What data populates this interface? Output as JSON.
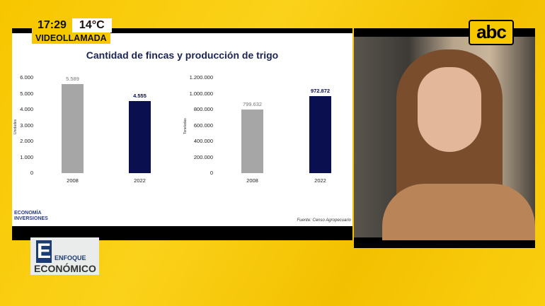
{
  "overlay": {
    "time": "17:29",
    "temperature": "14°C",
    "tag": "VIDEOLLAMADA",
    "channel_logo": "abc",
    "program_logo": {
      "letter": "E",
      "line1": "ENFOQUE",
      "line2": "ECONÓMICO"
    }
  },
  "slide": {
    "title": "Cantidad de fincas y producción de trigo",
    "brand_line1": "ECONOMÍA",
    "brand_line2": "INVERSIONES",
    "source": "Fuente: Censo Agropecuario"
  },
  "chart_data": [
    {
      "type": "bar",
      "title": "",
      "ylabel": "Unidades",
      "xlabel": "",
      "categories": [
        "2008",
        "2022"
      ],
      "values": [
        5589,
        4555
      ],
      "value_labels": [
        "5.589",
        "4.555"
      ],
      "ylim": [
        0,
        6000
      ],
      "yticks": [
        "0",
        "1.000",
        "2.000",
        "3.000",
        "4.000",
        "5.000",
        "6.000"
      ],
      "colors": [
        "#a6a6a6",
        "#0a0f4f"
      ]
    },
    {
      "type": "bar",
      "title": "",
      "ylabel": "Toneladas",
      "xlabel": "",
      "categories": [
        "2008",
        "2022"
      ],
      "values": [
        799632,
        972872
      ],
      "value_labels": [
        "799.632",
        "972.872"
      ],
      "ylim": [
        0,
        1200000
      ],
      "yticks": [
        "0",
        "200.000",
        "400.000",
        "600.000",
        "800.000",
        "1.000.000",
        "1.200.000"
      ],
      "colors": [
        "#a6a6a6",
        "#0a0f4f"
      ]
    }
  ]
}
